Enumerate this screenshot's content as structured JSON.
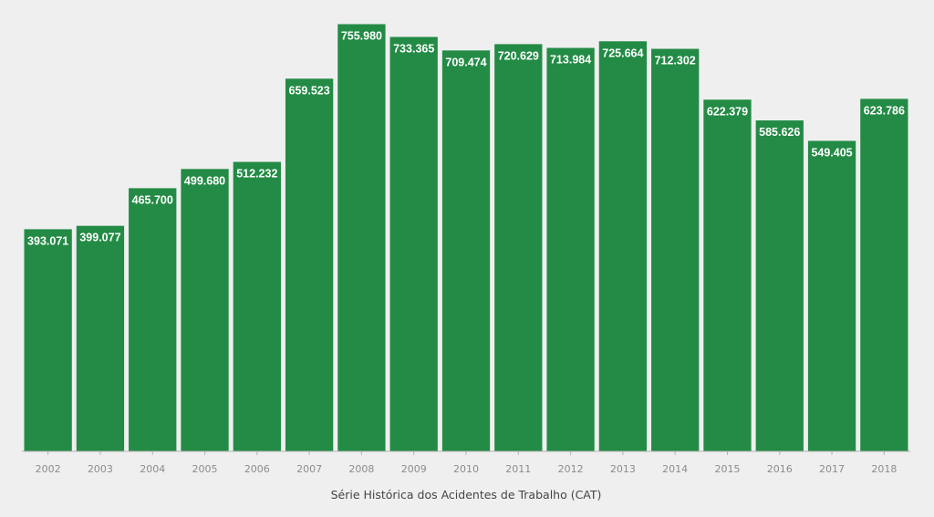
{
  "chart_data": {
    "type": "bar",
    "title": "",
    "xlabel": "Série Histórica dos Acidentes de Trabalho (CAT)",
    "ylabel": "",
    "categories": [
      "2002",
      "2003",
      "2004",
      "2005",
      "2006",
      "2007",
      "2008",
      "2009",
      "2010",
      "2011",
      "2012",
      "2013",
      "2014",
      "2015",
      "2016",
      "2017",
      "2018"
    ],
    "values": [
      393071,
      399077,
      465700,
      499680,
      512232,
      659523,
      755980,
      733365,
      709474,
      720629,
      713984,
      725664,
      712302,
      622379,
      585626,
      549405,
      623786
    ],
    "value_labels": [
      "393.071",
      "399.077",
      "465.700",
      "499.680",
      "512.232",
      "659.523",
      "755.980",
      "733.365",
      "709.474",
      "720.629",
      "713.984",
      "725.664",
      "712.302",
      "622.379",
      "585.626",
      "549.405",
      "623.786"
    ],
    "ylim": [
      0,
      760000
    ],
    "grid": false,
    "legend": "none",
    "colors": {
      "bar": "#238b45",
      "value_label": "#ffffff",
      "axis_line": "#b3b3b3",
      "tick_label": "#8c8c8c",
      "axis_title": "#444444",
      "background": "#efefef"
    }
  }
}
